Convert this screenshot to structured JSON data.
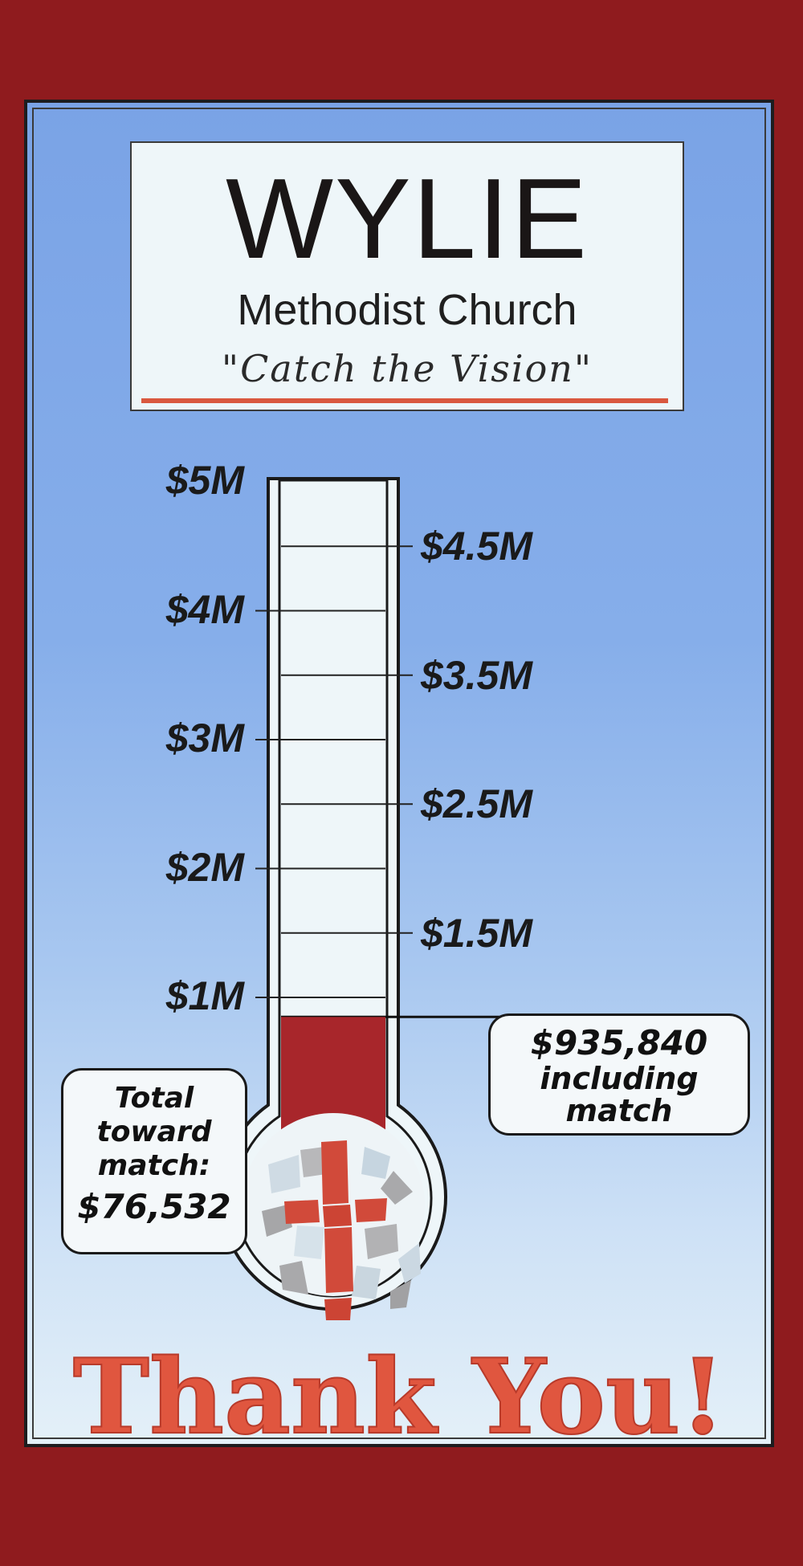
{
  "header": {
    "title": "WYLIE",
    "subtitle": "Methodist Church",
    "tagline": "\"Catch the Vision\""
  },
  "thermometer": {
    "goal_max": 5000000,
    "raised": 935840,
    "fill_color": "#a8262b",
    "left_ticks": [
      {
        "label": "$5M",
        "value": 5000000
      },
      {
        "label": "$4M",
        "value": 4000000
      },
      {
        "label": "$3M",
        "value": 3000000
      },
      {
        "label": "$2M",
        "value": 2000000
      },
      {
        "label": "$1M",
        "value": 1000000
      }
    ],
    "right_ticks": [
      {
        "label": "$4.5M",
        "value": 4500000
      },
      {
        "label": "$3.5M",
        "value": 3500000
      },
      {
        "label": "$2.5M",
        "value": 2500000
      },
      {
        "label": "$1.5M",
        "value": 1500000
      }
    ],
    "bulb_icon": "mosaic-cross-icon"
  },
  "callouts": {
    "left": {
      "line1": "Total",
      "line2": "toward",
      "line3": "match:",
      "amount": "$76,532"
    },
    "right": {
      "amount": "$935,840",
      "line1": "including",
      "line2": "match"
    }
  },
  "footer": {
    "message": "Thank You!"
  },
  "colors": {
    "frame": "#8f1b1e",
    "accent": "#e0563f",
    "sky": "#86aeea"
  }
}
